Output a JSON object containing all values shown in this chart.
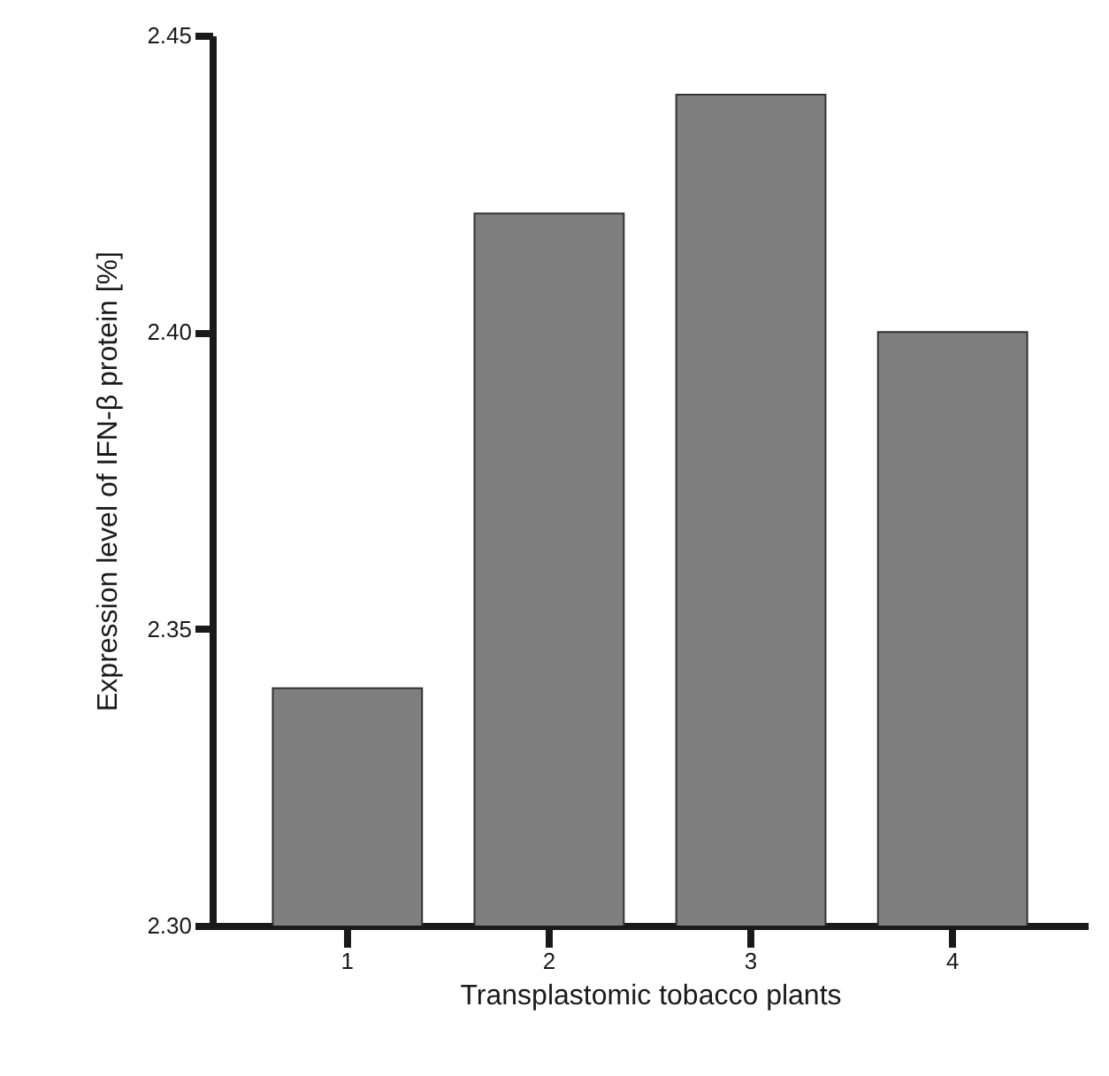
{
  "chart_data": {
    "type": "bar",
    "xlabel": "Transplastomic tobacco plants",
    "ylabel": "Expression level of IFN-β protein [%]",
    "categories": [
      "1",
      "2",
      "3",
      "4"
    ],
    "values": [
      2.34,
      2.42,
      2.44,
      2.4
    ],
    "color": "#7f7f7f",
    "ylim": [
      2.3,
      2.45
    ],
    "yticks": [
      {
        "value": 2.3,
        "label": "2.30"
      },
      2.35,
      {
        "value": 2.4,
        "label": "2.40"
      },
      2.45
    ],
    "grid": false
  }
}
